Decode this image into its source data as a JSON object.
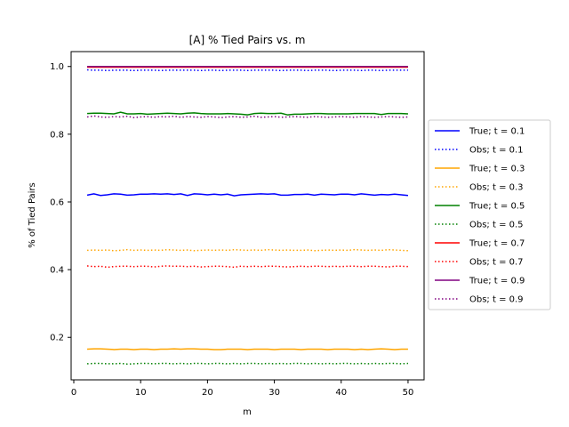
{
  "chart_data": {
    "type": "line",
    "title": "[A] % Tied Pairs vs. m",
    "xlabel": "m",
    "ylabel": "% of Tied Pairs",
    "xlim": [
      -0.4,
      52.4
    ],
    "ylim": [
      0.0745,
      1.044
    ],
    "xticks": [
      0,
      10,
      20,
      30,
      40,
      50
    ],
    "yticks": [
      0.2,
      0.4,
      0.6,
      0.8,
      1.0
    ],
    "ytick_labels": [
      "0.2",
      "0.4",
      "0.6",
      "0.8",
      "1.0"
    ],
    "grid": false,
    "legend_position": "center-right outside",
    "x_start": 2,
    "x_end": 50,
    "series": [
      {
        "name": "True; t = 0.1",
        "color": "#0000ff",
        "style": "solid",
        "values": [
          0.62,
          0.624,
          0.619,
          0.621,
          0.624,
          0.623,
          0.62,
          0.621,
          0.623,
          0.623,
          0.624,
          0.623,
          0.624,
          0.622,
          0.624,
          0.619,
          0.624,
          0.623,
          0.621,
          0.623,
          0.621,
          0.623,
          0.618,
          0.621,
          0.622,
          0.623,
          0.624,
          0.623,
          0.624,
          0.62,
          0.62,
          0.622,
          0.622,
          0.623,
          0.62,
          0.623,
          0.622,
          0.621,
          0.623,
          0.623,
          0.621,
          0.624,
          0.622,
          0.62,
          0.622,
          0.621,
          0.623,
          0.621,
          0.619
        ]
      },
      {
        "name": "Obs; t = 0.1",
        "color": "#0000ff",
        "style": "dotted",
        "values": [
          0.99,
          0.989,
          0.989,
          0.988,
          0.989,
          0.989,
          0.989,
          0.988,
          0.989,
          0.989,
          0.989,
          0.988,
          0.989,
          0.989,
          0.989,
          0.989,
          0.989,
          0.988,
          0.989,
          0.989,
          0.988,
          0.989,
          0.989,
          0.989,
          0.988,
          0.989,
          0.989,
          0.989,
          0.989,
          0.988,
          0.989,
          0.989,
          0.989,
          0.988,
          0.989,
          0.989,
          0.989,
          0.988,
          0.989,
          0.989,
          0.989,
          0.988,
          0.989,
          0.989,
          0.988,
          0.989,
          0.989,
          0.989,
          0.989
        ]
      },
      {
        "name": "True; t = 0.3",
        "color": "#ffa500",
        "style": "solid",
        "values": [
          0.165,
          0.166,
          0.166,
          0.165,
          0.164,
          0.165,
          0.165,
          0.164,
          0.165,
          0.165,
          0.164,
          0.165,
          0.165,
          0.166,
          0.165,
          0.166,
          0.166,
          0.165,
          0.165,
          0.164,
          0.164,
          0.165,
          0.165,
          0.165,
          0.164,
          0.165,
          0.165,
          0.165,
          0.164,
          0.165,
          0.165,
          0.165,
          0.164,
          0.165,
          0.165,
          0.165,
          0.164,
          0.165,
          0.165,
          0.165,
          0.164,
          0.165,
          0.164,
          0.165,
          0.166,
          0.165,
          0.164,
          0.165,
          0.165
        ]
      },
      {
        "name": "Obs; t = 0.3",
        "color": "#ffa500",
        "style": "dotted",
        "values": [
          0.457,
          0.458,
          0.457,
          0.458,
          0.456,
          0.457,
          0.459,
          0.457,
          0.458,
          0.457,
          0.458,
          0.457,
          0.459,
          0.458,
          0.457,
          0.458,
          0.456,
          0.457,
          0.458,
          0.457,
          0.458,
          0.457,
          0.459,
          0.458,
          0.457,
          0.458,
          0.457,
          0.459,
          0.458,
          0.457,
          0.458,
          0.457,
          0.457,
          0.458,
          0.456,
          0.457,
          0.458,
          0.457,
          0.458,
          0.457,
          0.459,
          0.458,
          0.457,
          0.458,
          0.457,
          0.459,
          0.458,
          0.457,
          0.456
        ]
      },
      {
        "name": "True; t = 0.5",
        "color": "#008000",
        "style": "solid",
        "values": [
          0.861,
          0.862,
          0.862,
          0.861,
          0.86,
          0.865,
          0.86,
          0.86,
          0.861,
          0.859,
          0.86,
          0.861,
          0.862,
          0.861,
          0.86,
          0.862,
          0.863,
          0.861,
          0.86,
          0.86,
          0.86,
          0.861,
          0.86,
          0.859,
          0.857,
          0.861,
          0.862,
          0.861,
          0.861,
          0.862,
          0.857,
          0.859,
          0.859,
          0.86,
          0.861,
          0.861,
          0.86,
          0.86,
          0.86,
          0.86,
          0.861,
          0.861,
          0.861,
          0.861,
          0.858,
          0.861,
          0.861,
          0.861,
          0.86
        ]
      },
      {
        "name": "Obs; t = 0.5",
        "color": "#008000",
        "style": "dotted",
        "values": [
          0.122,
          0.123,
          0.123,
          0.122,
          0.122,
          0.123,
          0.121,
          0.122,
          0.123,
          0.123,
          0.122,
          0.123,
          0.123,
          0.122,
          0.123,
          0.122,
          0.123,
          0.123,
          0.122,
          0.123,
          0.123,
          0.122,
          0.123,
          0.122,
          0.123,
          0.123,
          0.122,
          0.123,
          0.122,
          0.123,
          0.122,
          0.123,
          0.123,
          0.122,
          0.123,
          0.122,
          0.123,
          0.122,
          0.123,
          0.123,
          0.122,
          0.123,
          0.122,
          0.123,
          0.122,
          0.123,
          0.123,
          0.122,
          0.123
        ]
      },
      {
        "name": "True; t = 0.7",
        "color": "#ff0000",
        "style": "solid",
        "values": [
          0.998,
          0.998,
          0.998,
          0.998,
          0.998,
          0.998,
          0.998,
          0.998,
          0.998,
          0.998,
          0.998,
          0.998,
          0.998,
          0.998,
          0.998,
          0.998,
          0.998,
          0.998,
          0.998,
          0.998,
          0.998,
          0.998,
          0.998,
          0.998,
          0.998,
          0.998,
          0.998,
          0.998,
          0.998,
          0.998,
          0.998,
          0.998,
          0.998,
          0.998,
          0.998,
          0.998,
          0.998,
          0.998,
          0.998,
          0.998,
          0.998,
          0.998,
          0.998,
          0.998,
          0.998,
          0.998,
          0.998,
          0.998,
          0.998
        ]
      },
      {
        "name": "Obs; t = 0.7",
        "color": "#ff0000",
        "style": "dotted",
        "values": [
          0.411,
          0.409,
          0.41,
          0.407,
          0.409,
          0.41,
          0.41,
          0.409,
          0.41,
          0.41,
          0.408,
          0.41,
          0.411,
          0.41,
          0.41,
          0.409,
          0.41,
          0.408,
          0.409,
          0.41,
          0.41,
          0.409,
          0.407,
          0.41,
          0.409,
          0.41,
          0.409,
          0.41,
          0.41,
          0.409,
          0.408,
          0.409,
          0.41,
          0.409,
          0.41,
          0.41,
          0.409,
          0.41,
          0.409,
          0.41,
          0.41,
          0.409,
          0.41,
          0.41,
          0.409,
          0.408,
          0.41,
          0.41,
          0.409
        ]
      },
      {
        "name": "True; t = 0.9",
        "color": "#800080",
        "style": "solid",
        "values": [
          1.0,
          1.0,
          1.0,
          1.0,
          1.0,
          1.0,
          1.0,
          1.0,
          1.0,
          1.0,
          1.0,
          1.0,
          1.0,
          1.0,
          1.0,
          1.0,
          1.0,
          1.0,
          1.0,
          1.0,
          1.0,
          1.0,
          1.0,
          1.0,
          1.0,
          1.0,
          1.0,
          1.0,
          1.0,
          1.0,
          1.0,
          1.0,
          1.0,
          1.0,
          1.0,
          1.0,
          1.0,
          1.0,
          1.0,
          1.0,
          1.0,
          1.0,
          1.0,
          1.0,
          1.0,
          1.0,
          1.0,
          1.0,
          1.0
        ]
      },
      {
        "name": "Obs; t = 0.9",
        "color": "#800080",
        "style": "dotted",
        "values": [
          0.851,
          0.854,
          0.851,
          0.85,
          0.852,
          0.851,
          0.853,
          0.849,
          0.851,
          0.852,
          0.85,
          0.852,
          0.851,
          0.853,
          0.85,
          0.852,
          0.851,
          0.85,
          0.852,
          0.851,
          0.849,
          0.851,
          0.852,
          0.85,
          0.851,
          0.853,
          0.85,
          0.851,
          0.852,
          0.85,
          0.851,
          0.852,
          0.851,
          0.85,
          0.852,
          0.851,
          0.85,
          0.851,
          0.852,
          0.851,
          0.85,
          0.852,
          0.851,
          0.85,
          0.851,
          0.852,
          0.851,
          0.85,
          0.851
        ]
      }
    ]
  }
}
